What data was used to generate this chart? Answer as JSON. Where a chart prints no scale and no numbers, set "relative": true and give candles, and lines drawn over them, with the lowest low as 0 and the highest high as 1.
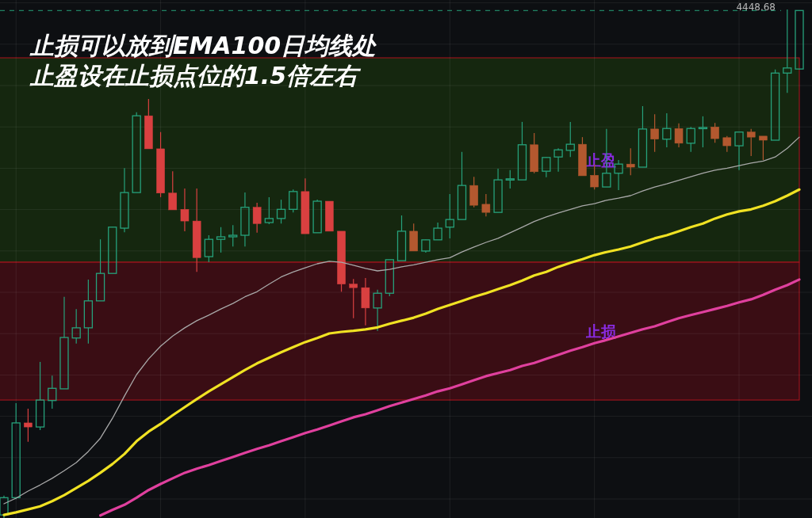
{
  "chart_data": {
    "type": "candlestick",
    "title": "止损可以放到EMA100日均线处",
    "subtitle": "止盈设在止损点位的1.5倍左右",
    "relative": true,
    "grid": true,
    "categories": [
      null,
      null,
      null,
      null,
      null,
      null,
      null,
      null,
      null,
      null,
      null,
      null,
      null,
      null,
      null,
      null,
      null,
      null,
      null,
      null,
      null,
      null,
      null,
      null,
      null,
      null,
      null,
      null,
      null,
      null,
      null,
      null,
      null,
      null,
      null,
      null,
      null,
      null,
      null,
      null,
      null,
      null,
      null,
      null,
      null,
      null,
      null,
      null,
      null,
      null,
      null,
      null,
      null,
      null,
      null,
      null,
      null,
      null,
      null,
      null,
      null,
      null,
      null,
      null,
      null,
      null,
      null
    ],
    "ohlc": [
      [
        0.006,
        0.044,
        0,
        0.04
      ],
      [
        0.04,
        0.226,
        0.037,
        0.187
      ],
      [
        0.187,
        0.215,
        0.15,
        0.179
      ],
      [
        0.179,
        0.307,
        0.173,
        0.232
      ],
      [
        0.231,
        0.28,
        0.215,
        0.255
      ],
      [
        0.254,
        0.435,
        0.254,
        0.355
      ],
      [
        0.354,
        0.411,
        0.343,
        0.374
      ],
      [
        0.374,
        0.469,
        0.343,
        0.427
      ],
      [
        0.427,
        0.548,
        0.427,
        0.481
      ],
      [
        0.481,
        0.573,
        0.481,
        0.572
      ],
      [
        0.57,
        0.688,
        0.562,
        0.64
      ],
      [
        0.64,
        0.798,
        0.64,
        0.791
      ],
      [
        0.791,
        0.824,
        0.726,
        0.726
      ],
      [
        0.726,
        0.759,
        0.631,
        0.639
      ],
      [
        0.639,
        0.682,
        0.606,
        0.606
      ],
      [
        0.607,
        0.648,
        0.564,
        0.584
      ],
      [
        0.584,
        0.648,
        0.484,
        0.512
      ],
      [
        0.514,
        0.556,
        0.503,
        0.548
      ],
      [
        0.548,
        0.572,
        0.522,
        0.553
      ],
      [
        0.553,
        0.576,
        0.534,
        0.556
      ],
      [
        0.556,
        0.64,
        0.534,
        0.611
      ],
      [
        0.611,
        0.62,
        0.561,
        0.579
      ],
      [
        0.581,
        0.631,
        0.578,
        0.589
      ],
      [
        0.589,
        0.626,
        0.579,
        0.607
      ],
      [
        0.607,
        0.646,
        0.601,
        0.642
      ],
      [
        0.642,
        0.668,
        0.559,
        0.559
      ],
      [
        0.561,
        0.626,
        0.561,
        0.623
      ],
      [
        0.623,
        0.623,
        0.564,
        0.564
      ],
      [
        0.564,
        0.564,
        0.445,
        0.46
      ],
      [
        0.46,
        0.47,
        0.393,
        0.453
      ],
      [
        0.453,
        0.472,
        0.379,
        0.413
      ],
      [
        0.413,
        0.449,
        0.368,
        0.442
      ],
      [
        0.442,
        0.508,
        0.436,
        0.508
      ],
      [
        0.506,
        0.595,
        0.506,
        0.564
      ],
      [
        0.564,
        0.579,
        0.525,
        0.525
      ],
      [
        0.525,
        0.548,
        0.522,
        0.547
      ],
      [
        0.547,
        0.581,
        0.547,
        0.57
      ],
      [
        0.572,
        0.637,
        0.55,
        0.587
      ],
      [
        0.587,
        0.72,
        0.587,
        0.654
      ],
      [
        0.654,
        0.671,
        0.611,
        0.615
      ],
      [
        0.617,
        0.637,
        0.593,
        0.601
      ],
      [
        0.601,
        0.687,
        0.601,
        0.665
      ],
      [
        0.665,
        0.684,
        0.648,
        0.667
      ],
      [
        0.665,
        0.779,
        0.665,
        0.734
      ],
      [
        0.734,
        0.757,
        0.678,
        0.681
      ],
      [
        0.682,
        0.71,
        0.67,
        0.709
      ],
      [
        0.71,
        0.727,
        0.681,
        0.724
      ],
      [
        0.723,
        0.779,
        0.71,
        0.735
      ],
      [
        0.735,
        0.749,
        0.673,
        0.673
      ],
      [
        0.674,
        0.695,
        0.646,
        0.651
      ],
      [
        0.651,
        0.765,
        0.651,
        0.678
      ],
      [
        0.678,
        0.704,
        0.645,
        0.696
      ],
      [
        0.696,
        0.727,
        0.674,
        0.69
      ],
      [
        0.69,
        0.81,
        0.69,
        0.765
      ],
      [
        0.765,
        0.794,
        0.72,
        0.745
      ],
      [
        0.745,
        0.796,
        0.729,
        0.766
      ],
      [
        0.766,
        0.776,
        0.729,
        0.737
      ],
      [
        0.737,
        0.769,
        0.72,
        0.766
      ],
      [
        0.766,
        0.79,
        0.729,
        0.768
      ],
      [
        0.769,
        0.777,
        0.738,
        0.746
      ],
      [
        0.748,
        0.751,
        0.72,
        0.732
      ],
      [
        0.732,
        0.759,
        0.684,
        0.759
      ],
      [
        0.759,
        0.765,
        0.712,
        0.749
      ],
      [
        0.751,
        0.751,
        0.704,
        0.743
      ],
      [
        0.743,
        0.882,
        0.743,
        0.875
      ],
      [
        0.875,
        1,
        0.836,
        0.885
      ],
      [
        0.883,
        0.998,
        0.882,
        0.998
      ]
    ],
    "colors": [
      "#26a17b",
      "#26a17b",
      "#d94040",
      "#26a17b",
      "#26a17b",
      "#26a17b",
      "#26a17b",
      "#26a17b",
      "#26a17b",
      "#26a17b",
      "#26a17b",
      "#26a17b",
      "#d94040",
      "#d94040",
      "#d94040",
      "#d94040",
      "#d94040",
      "#26a17b",
      "#26a17b",
      "#26a17b",
      "#26a17b",
      "#d94040",
      "#26a17b",
      "#26a17b",
      "#26a17b",
      "#d94040",
      "#26a17b",
      "#d94040",
      "#d94040",
      "#d94040",
      "#d94040",
      "#26a17b",
      "#26a17b",
      "#26a17b",
      "#b3582f",
      "#26a17b",
      "#26a17b",
      "#26a17b",
      "#26a17b",
      "#b3582f",
      "#b3582f",
      "#26a17b",
      "#26a17b",
      "#26a17b",
      "#b3582f",
      "#26a17b",
      "#26a17b",
      "#26a17b",
      "#b3582f",
      "#b3582f",
      "#26a17b",
      "#26a17b",
      "#b3582f",
      "#26a17b",
      "#b3582f",
      "#26a17b",
      "#b3582f",
      "#26a17b",
      "#26a17b",
      "#b3582f",
      "#b3582f",
      "#26a17b",
      "#b3582f",
      "#b3582f",
      "#26a17b",
      "#26a17b",
      "#26a17b"
    ],
    "series": [
      {
        "type": "line",
        "color": "#a8a8a8",
        "values": [
          0.028,
          0.039,
          0.053,
          0.065,
          0.078,
          0.093,
          0.109,
          0.131,
          0.157,
          0.196,
          0.24,
          0.282,
          0.313,
          0.338,
          0.358,
          0.374,
          0.388,
          0.399,
          0.411,
          0.422,
          0.435,
          0.445,
          0.46,
          0.474,
          0.484,
          0.492,
          0.5,
          0.505,
          0.503,
          0.497,
          0.491,
          0.486,
          0.489,
          0.494,
          0.498,
          0.503,
          0.508,
          0.512,
          0.523,
          0.533,
          0.542,
          0.55,
          0.561,
          0.572,
          0.583,
          0.592,
          0.6,
          0.607,
          0.614,
          0.618,
          0.625,
          0.629,
          0.634,
          0.643,
          0.651,
          0.657,
          0.664,
          0.671,
          0.678,
          0.684,
          0.688,
          0.693,
          0.698,
          0.702,
          0.71,
          0.727,
          0.749
        ]
      },
      {
        "type": "line",
        "color": "#f0e223",
        "values": [
          0.006,
          0.011,
          0.017,
          0.023,
          0.033,
          0.045,
          0.059,
          0.073,
          0.089,
          0.106,
          0.126,
          0.151,
          0.17,
          0.185,
          0.202,
          0.218,
          0.234,
          0.249,
          0.263,
          0.277,
          0.291,
          0.304,
          0.315,
          0.326,
          0.336,
          0.346,
          0.354,
          0.363,
          0.366,
          0.368,
          0.371,
          0.375,
          0.382,
          0.388,
          0.394,
          0.402,
          0.411,
          0.419,
          0.427,
          0.435,
          0.442,
          0.45,
          0.458,
          0.467,
          0.477,
          0.484,
          0.494,
          0.502,
          0.509,
          0.517,
          0.523,
          0.528,
          0.534,
          0.542,
          0.55,
          0.556,
          0.564,
          0.572,
          0.579,
          0.589,
          0.597,
          0.603,
          0.607,
          0.614,
          0.623,
          0.634,
          0.646
        ]
      },
      {
        "type": "line",
        "color": "#e0409e",
        "values": [
          null,
          null,
          null,
          null,
          null,
          null,
          null,
          null,
          0.005,
          0.016,
          0.026,
          0.04,
          0.055,
          0.067,
          0.078,
          0.089,
          0.097,
          0.104,
          0.112,
          0.12,
          0.128,
          0.136,
          0.143,
          0.151,
          0.159,
          0.167,
          0.174,
          0.182,
          0.19,
          0.198,
          0.204,
          0.212,
          0.22,
          0.227,
          0.234,
          0.241,
          0.249,
          0.255,
          0.263,
          0.271,
          0.279,
          0.285,
          0.291,
          0.299,
          0.305,
          0.313,
          0.321,
          0.329,
          0.336,
          0.344,
          0.35,
          0.357,
          0.364,
          0.371,
          0.377,
          0.385,
          0.393,
          0.399,
          0.405,
          0.411,
          0.417,
          0.424,
          0.43,
          0.439,
          0.449,
          0.458,
          0.469
        ]
      }
    ],
    "bands": [
      {
        "axis": "y",
        "from": 0.503,
        "to": 0.905,
        "label": "止盈",
        "color": "#15270f"
      },
      {
        "axis": "y",
        "from": 0.232,
        "to": 0.503,
        "label": "止损",
        "color": "#3a0d14"
      }
    ],
    "ref_lines": [
      {
        "axis": "y",
        "value": 0.998,
        "color": "#26a17b",
        "line_style": "dashed"
      }
    ],
    "annotations": [
      "4448.68"
    ]
  }
}
